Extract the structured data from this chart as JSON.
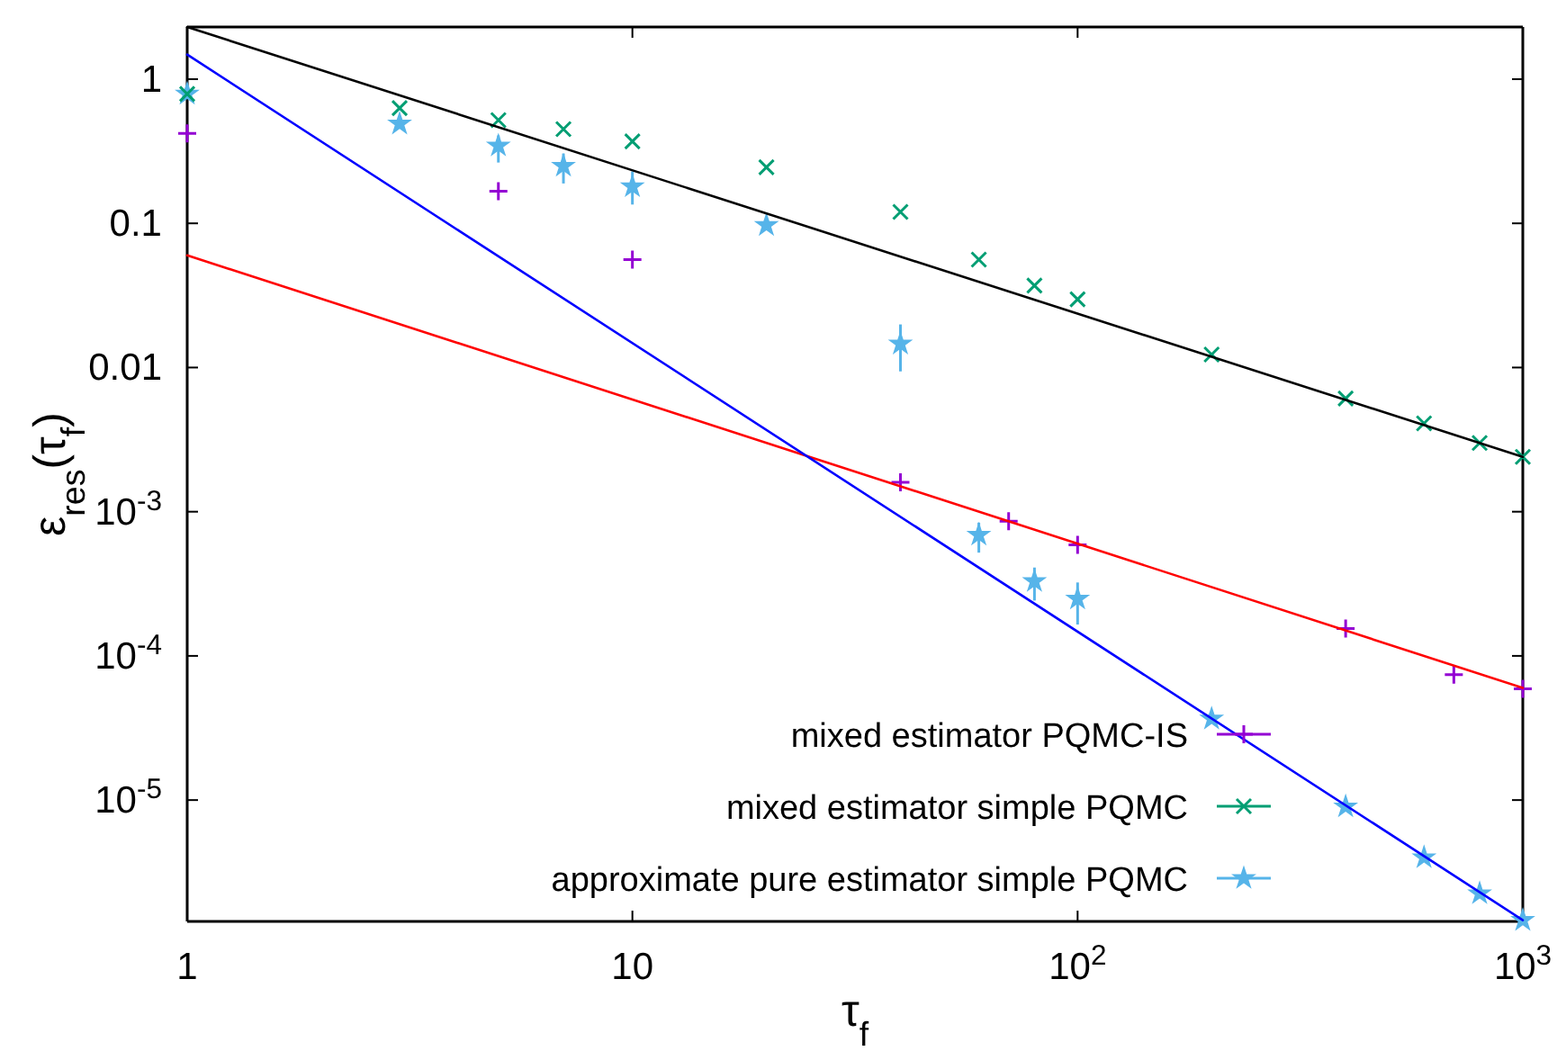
{
  "chart_data": {
    "type": "scatter",
    "xlabel": "τ$_{f}$",
    "ylabel": "ε$_{res}$(τ$_{f}$)",
    "log": "xy",
    "xlim": [
      1,
      1000
    ],
    "ylim": [
      1.44e-06,
      2.3
    ],
    "xticks": [
      1,
      10,
      {
        "value": 100,
        "label": "10$^{2}$"
      },
      {
        "value": 1000,
        "label": "10$^{3}$"
      }
    ],
    "yticks": [
      {
        "value": 1e-05,
        "label": "10$^{-5}$"
      },
      {
        "value": 0.0001,
        "label": "10$^{-4}$"
      },
      {
        "value": 0.001,
        "label": "10$^{-3}$"
      },
      0.01,
      0.1,
      1
    ],
    "grid": false,
    "legend": "bottom right",
    "series": [
      {
        "type": "line",
        "color": "#000000",
        "marker": "none",
        "x": [
          1,
          1000
        ],
        "values": [
          2.3,
          0.0024
        ]
      },
      {
        "type": "line",
        "color": "#0000ff",
        "marker": "none",
        "x": [
          1,
          1000
        ],
        "values": [
          1.48,
          1.47e-06
        ]
      },
      {
        "type": "line",
        "color": "#ff0000",
        "marker": "none",
        "x": [
          1,
          1000
        ],
        "values": [
          0.06,
          6e-05
        ]
      },
      {
        "name": "mixed estimator PQMC-IS",
        "color": "#9400d3",
        "marker": "cross",
        "x": [
          1,
          5,
          10,
          40,
          70,
          100,
          400,
          700,
          1000
        ],
        "values": [
          0.42,
          0.167,
          0.056,
          0.0016,
          0.00086,
          0.00059,
          0.000155,
          7.4e-05,
          5.9e-05
        ]
      },
      {
        "name": "mixed estimator simple PQMC",
        "color": "#009e73",
        "marker": "x",
        "x": [
          1,
          3,
          5,
          7,
          10,
          20,
          40,
          60,
          80,
          100,
          200,
          400,
          600,
          800,
          1000
        ],
        "values": [
          0.79,
          0.63,
          0.52,
          0.45,
          0.37,
          0.245,
          0.12,
          0.056,
          0.037,
          0.0297,
          0.0123,
          0.0061,
          0.0041,
          0.003,
          0.0024
        ]
      },
      {
        "name": "approximate pure estimator simple PQMC",
        "color": "#56b4e9",
        "marker": "star",
        "x": [
          1,
          3,
          5,
          7,
          10,
          20,
          40,
          60,
          80,
          100,
          200,
          400,
          600,
          800,
          1000
        ],
        "values": [
          0.79,
          0.49,
          0.345,
          0.25,
          0.18,
          0.097,
          0.0146,
          0.00069,
          0.000329,
          0.000249,
          3.66e-05,
          9e-06,
          4e-06,
          2.25e-06,
          1.47e-06
        ],
        "errors": [
          null,
          null,
          [
            0.264,
            0.407
          ],
          [
            0.189,
            0.305
          ],
          [
            0.135,
            0.229
          ],
          null,
          [
            0.0094,
            0.0199
          ],
          [
            0.00052,
            0.00084
          ],
          [
            0.000242,
            0.00041
          ],
          [
            0.000165,
            0.000323
          ],
          null,
          null,
          null,
          null,
          null
        ]
      }
    ]
  }
}
